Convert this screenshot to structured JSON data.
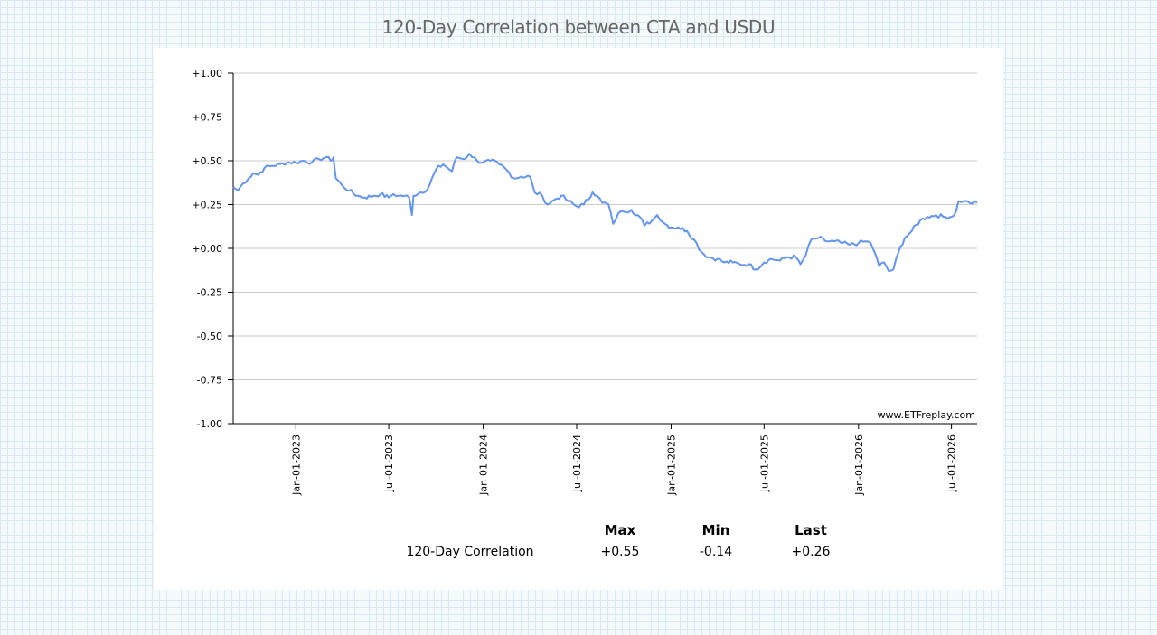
{
  "title": "120-Day Correlation between CTA and USDU",
  "watermark": "www.ETFreplay.com",
  "chart_data": {
    "type": "line",
    "title": "120-Day Correlation between CTA and USDU",
    "ylim": [
      -1.0,
      1.0
    ],
    "xlim": [
      "2022-09-01",
      "2026-08-20"
    ],
    "y_ticks": [
      "+1.00",
      "+0.75",
      "+0.50",
      "+0.25",
      "+0.00",
      "-0.25",
      "-0.50",
      "-0.75",
      "-1.00"
    ],
    "x_ticks": [
      "Jan-01-2023",
      "Jul-01-2023",
      "Jan-01-2024",
      "Jul-01-2024",
      "Jan-01-2025",
      "Jul-01-2025",
      "Jan-01-2026",
      "Jul-01-2026"
    ],
    "grid": true,
    "line_color": "#6495ed",
    "series": [
      {
        "name": "120-Day Correlation",
        "points": [
          [
            "2022-09-01",
            0.35
          ],
          [
            "2022-09-10",
            0.33
          ],
          [
            "2022-09-20",
            0.37
          ],
          [
            "2022-10-01",
            0.4
          ],
          [
            "2022-10-10",
            0.43
          ],
          [
            "2022-10-20",
            0.42
          ],
          [
            "2022-11-01",
            0.46
          ],
          [
            "2022-11-15",
            0.47
          ],
          [
            "2022-12-01",
            0.48
          ],
          [
            "2022-12-15",
            0.49
          ],
          [
            "2023-01-01",
            0.49
          ],
          [
            "2023-01-15",
            0.5
          ],
          [
            "2023-02-01",
            0.49
          ],
          [
            "2023-02-15",
            0.51
          ],
          [
            "2023-03-01",
            0.52
          ],
          [
            "2023-03-10",
            0.5
          ],
          [
            "2023-03-15",
            0.52
          ],
          [
            "2023-03-20",
            0.4
          ],
          [
            "2023-04-01",
            0.36
          ],
          [
            "2023-04-15",
            0.33
          ],
          [
            "2023-05-01",
            0.3
          ],
          [
            "2023-05-15",
            0.29
          ],
          [
            "2023-06-01",
            0.3
          ],
          [
            "2023-06-15",
            0.31
          ],
          [
            "2023-07-01",
            0.29
          ],
          [
            "2023-07-10",
            0.31
          ],
          [
            "2023-07-20",
            0.3
          ],
          [
            "2023-08-01",
            0.3
          ],
          [
            "2023-08-10",
            0.29
          ],
          [
            "2023-08-15",
            0.19
          ],
          [
            "2023-08-18",
            0.3
          ],
          [
            "2023-09-01",
            0.32
          ],
          [
            "2023-09-15",
            0.34
          ],
          [
            "2023-10-01",
            0.45
          ],
          [
            "2023-10-15",
            0.48
          ],
          [
            "2023-11-01",
            0.44
          ],
          [
            "2023-11-10",
            0.52
          ],
          [
            "2023-11-25",
            0.51
          ],
          [
            "2023-12-05",
            0.54
          ],
          [
            "2023-12-20",
            0.5
          ],
          [
            "2024-01-01",
            0.49
          ],
          [
            "2024-01-15",
            0.5
          ],
          [
            "2024-02-01",
            0.48
          ],
          [
            "2024-02-15",
            0.45
          ],
          [
            "2024-03-01",
            0.4
          ],
          [
            "2024-03-15",
            0.41
          ],
          [
            "2024-04-01",
            0.41
          ],
          [
            "2024-04-10",
            0.32
          ],
          [
            "2024-04-25",
            0.3
          ],
          [
            "2024-05-05",
            0.25
          ],
          [
            "2024-05-20",
            0.28
          ],
          [
            "2024-06-01",
            0.3
          ],
          [
            "2024-06-15",
            0.27
          ],
          [
            "2024-07-01",
            0.24
          ],
          [
            "2024-07-15",
            0.25
          ],
          [
            "2024-08-01",
            0.32
          ],
          [
            "2024-08-10",
            0.3
          ],
          [
            "2024-08-20",
            0.26
          ],
          [
            "2024-09-01",
            0.25
          ],
          [
            "2024-09-10",
            0.14
          ],
          [
            "2024-09-20",
            0.2
          ],
          [
            "2024-10-01",
            0.21
          ],
          [
            "2024-10-15",
            0.22
          ],
          [
            "2024-11-01",
            0.18
          ],
          [
            "2024-11-10",
            0.13
          ],
          [
            "2024-11-25",
            0.16
          ],
          [
            "2024-12-05",
            0.19
          ],
          [
            "2024-12-20",
            0.14
          ],
          [
            "2025-01-01",
            0.12
          ],
          [
            "2025-01-15",
            0.12
          ],
          [
            "2025-02-01",
            0.1
          ],
          [
            "2025-02-15",
            0.05
          ],
          [
            "2025-03-01",
            -0.02
          ],
          [
            "2025-03-15",
            -0.05
          ],
          [
            "2025-04-01",
            -0.06
          ],
          [
            "2025-04-15",
            -0.08
          ],
          [
            "2025-05-01",
            -0.08
          ],
          [
            "2025-05-15",
            -0.09
          ],
          [
            "2025-06-01",
            -0.09
          ],
          [
            "2025-06-15",
            -0.12
          ],
          [
            "2025-07-01",
            -0.08
          ],
          [
            "2025-07-15",
            -0.06
          ],
          [
            "2025-08-01",
            -0.07
          ],
          [
            "2025-08-15",
            -0.05
          ],
          [
            "2025-09-01",
            -0.05
          ],
          [
            "2025-09-10",
            -0.09
          ],
          [
            "2025-09-20",
            -0.04
          ],
          [
            "2025-10-01",
            0.05
          ],
          [
            "2025-10-15",
            0.06
          ],
          [
            "2025-11-01",
            0.04
          ],
          [
            "2025-11-15",
            0.04
          ],
          [
            "2025-12-01",
            0.03
          ],
          [
            "2025-12-15",
            0.02
          ],
          [
            "2026-01-01",
            0.03
          ],
          [
            "2026-01-15",
            0.04
          ],
          [
            "2026-01-25",
            0.03
          ],
          [
            "2026-02-01",
            -0.02
          ],
          [
            "2026-02-10",
            -0.1
          ],
          [
            "2026-02-20",
            -0.08
          ],
          [
            "2026-03-01",
            -0.13
          ],
          [
            "2026-03-10",
            -0.12
          ],
          [
            "2026-03-20",
            -0.02
          ],
          [
            "2026-04-01",
            0.06
          ],
          [
            "2026-04-15",
            0.1
          ],
          [
            "2026-05-01",
            0.16
          ],
          [
            "2026-05-15",
            0.18
          ],
          [
            "2026-06-01",
            0.19
          ],
          [
            "2026-06-15",
            0.18
          ],
          [
            "2026-07-01",
            0.18
          ],
          [
            "2026-07-10",
            0.21
          ],
          [
            "2026-07-15",
            0.27
          ],
          [
            "2026-07-25",
            0.27
          ],
          [
            "2026-08-05",
            0.26
          ],
          [
            "2026-08-20",
            0.26
          ]
        ]
      }
    ]
  },
  "stats": {
    "headers": [
      "",
      "Max",
      "Min",
      "Last"
    ],
    "row": {
      "label": "120-Day Correlation",
      "max": "+0.55",
      "min": "-0.14",
      "last": "+0.26"
    }
  }
}
